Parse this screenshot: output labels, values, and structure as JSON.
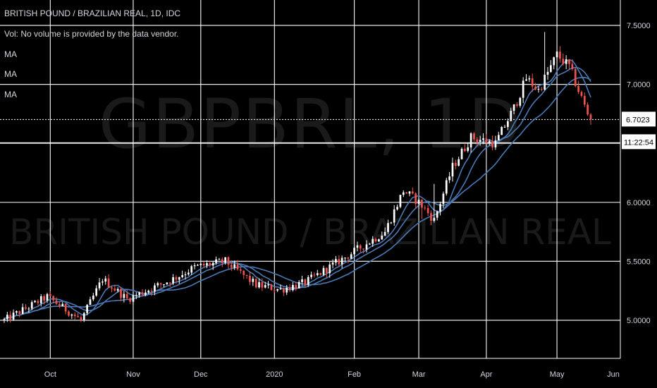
{
  "chart_data": {
    "type": "candlestick",
    "title": "BRITISH POUND / BRAZILIAN REAL, 1D, IDC",
    "watermark_symbol": "GBPBRL, 1D",
    "watermark_name": "BRITISH POUND / BRAZILIAN REAL",
    "volume_note": "Vol: No volume is provided by the data vendor.",
    "indicators": [
      "MA",
      "MA",
      "MA"
    ],
    "ylim": [
      4.7,
      7.6
    ],
    "y_ticks": [
      "7.5000",
      "7.0000",
      "6.5000",
      "6.0000",
      "5.5000",
      "5.0000"
    ],
    "x_ticks": [
      "Oct",
      "Nov",
      "Dec",
      "2020",
      "Feb",
      "Mar",
      "Apr",
      "May",
      "Jun"
    ],
    "last_price": "6.7023",
    "countdown": "11:22:54",
    "grid": true,
    "colors": {
      "background": "#000000",
      "up": "#ffffff",
      "down": "#ef5350",
      "ma": "#4a7ab5",
      "grid": "#ffffff",
      "axis_text": "#d1d4dc"
    },
    "anchors": [
      [
        0,
        5.0
      ],
      [
        14,
        5.2
      ],
      [
        25,
        5.0
      ],
      [
        32,
        5.35
      ],
      [
        40,
        5.18
      ],
      [
        55,
        5.35
      ],
      [
        62,
        5.45
      ],
      [
        72,
        5.5
      ],
      [
        82,
        5.3
      ],
      [
        90,
        5.26
      ],
      [
        98,
        5.32
      ],
      [
        112,
        5.55
      ],
      [
        118,
        5.65
      ],
      [
        124,
        5.75
      ],
      [
        130,
        6.1
      ],
      [
        135,
        6.0
      ],
      [
        140,
        5.85
      ],
      [
        146,
        6.3
      ],
      [
        152,
        6.55
      ],
      [
        160,
        6.5
      ],
      [
        166,
        6.8
      ],
      [
        170,
        7.05
      ],
      [
        174,
        6.95
      ],
      [
        180,
        7.25
      ],
      [
        184,
        7.15
      ],
      [
        190,
        6.75
      ]
    ]
  }
}
